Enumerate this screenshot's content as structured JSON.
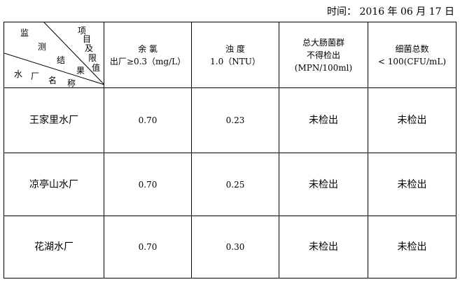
{
  "date": "时间： 2016 年 06 月 17 日",
  "corner": {
    "top_right": [
      "项",
      "目",
      "及",
      "限",
      "值"
    ],
    "middle": [
      "监",
      "测",
      "结",
      "果"
    ],
    "bottom": [
      "水",
      "厂",
      "名",
      "称"
    ]
  },
  "headers": [
    {
      "lines": [
        "余 氯",
        "出厂≥0.3（mg/L）"
      ]
    },
    {
      "lines": [
        "浊 度",
        "1.0（NTU）"
      ]
    },
    {
      "lines": [
        "总大肠菌群",
        "不得检出",
        "(MPN/100ml)"
      ]
    },
    {
      "lines": [
        "细菌总数",
        "< 100(CFU/mL)"
      ]
    }
  ],
  "rows": [
    {
      "name": "王家里水厂",
      "values": [
        "0.70",
        "0.23",
        "未检出",
        "未检出"
      ]
    },
    {
      "name": "凉亭山水厂",
      "values": [
        "0.70",
        "0.25",
        "未检出",
        "未检出"
      ]
    },
    {
      "name": "花湖水厂",
      "values": [
        "0.70",
        "0.30",
        "未检出",
        "未检出"
      ]
    }
  ]
}
